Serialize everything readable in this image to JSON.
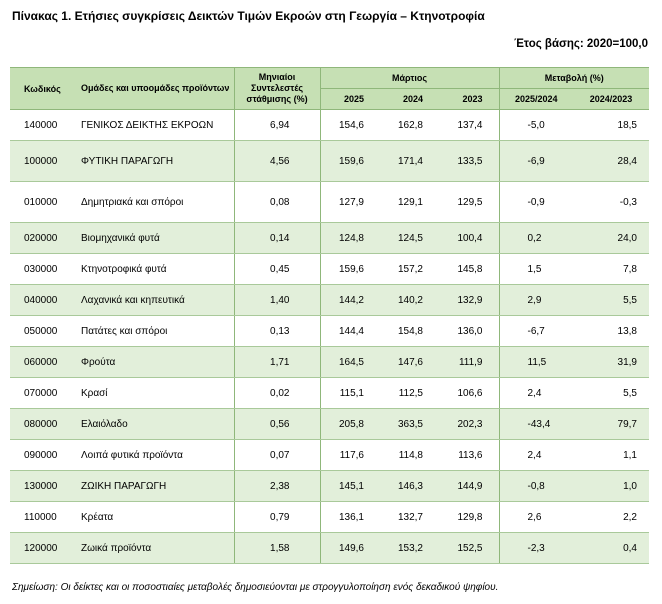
{
  "title": "Πίνακας 1. Ετήσιες συγκρίσεις Δεικτών Τιμών Εκροών στη Γεωργία – Κτηνοτροφία",
  "base_year": "Έτος βάσης: 2020=100,0",
  "header": {
    "code": "Κωδικός",
    "groups": "Ομάδες και υποομάδες προϊόντων",
    "weights": "Μηνιαίοι Συντελεστές στάθμισης (%)",
    "month": "Μάρτιος",
    "years": [
      "2025",
      "2024",
      "2023"
    ],
    "change": "Μεταβολή (%)",
    "change_periods": [
      "2025/2024",
      "2024/2023"
    ]
  },
  "rows": [
    {
      "code": "140000",
      "name": "ΓΕΝΙΚΟΣ ΔΕΙΚΤΗΣ ΕΚΡΟΩΝ",
      "weight": "6,94",
      "y2025": "154,6",
      "y2024": "162,8",
      "y2023": "137,4",
      "ch1": "-5,0",
      "ch2": "18,5"
    },
    {
      "code": "100000",
      "name": "ΦΥΤΙΚΗ ΠΑΡΑΓΩΓΗ",
      "weight": "4,56",
      "y2025": "159,6",
      "y2024": "171,4",
      "y2023": "133,5",
      "ch1": "-6,9",
      "ch2": "28,4"
    },
    {
      "code": "010000",
      "name": "Δημητριακά και σπόροι",
      "weight": "0,08",
      "y2025": "127,9",
      "y2024": "129,1",
      "y2023": "129,5",
      "ch1": "-0,9",
      "ch2": "-0,3"
    },
    {
      "code": "020000",
      "name": "Βιομηχανικά φυτά",
      "weight": "0,14",
      "y2025": "124,8",
      "y2024": "124,5",
      "y2023": "100,4",
      "ch1": "0,2",
      "ch2": "24,0"
    },
    {
      "code": "030000",
      "name": "Κτηνοτροφικά φυτά",
      "weight": "0,45",
      "y2025": "159,6",
      "y2024": "157,2",
      "y2023": "145,8",
      "ch1": "1,5",
      "ch2": "7,8"
    },
    {
      "code": "040000",
      "name": "Λαχανικά και κηπευτικά",
      "weight": "1,40",
      "y2025": "144,2",
      "y2024": "140,2",
      "y2023": "132,9",
      "ch1": "2,9",
      "ch2": "5,5"
    },
    {
      "code": "050000",
      "name": "Πατάτες και σπόροι",
      "weight": "0,13",
      "y2025": "144,4",
      "y2024": "154,8",
      "y2023": "136,0",
      "ch1": "-6,7",
      "ch2": "13,8"
    },
    {
      "code": "060000",
      "name": "Φρούτα",
      "weight": "1,71",
      "y2025": "164,5",
      "y2024": "147,6",
      "y2023": "111,9",
      "ch1": "11,5",
      "ch2": "31,9"
    },
    {
      "code": "070000",
      "name": "Κρασί",
      "weight": "0,02",
      "y2025": "115,1",
      "y2024": "112,5",
      "y2023": "106,6",
      "ch1": "2,4",
      "ch2": "5,5"
    },
    {
      "code": "080000",
      "name": "Ελαιόλαδο",
      "weight": "0,56",
      "y2025": "205,8",
      "y2024": "363,5",
      "y2023": "202,3",
      "ch1": "-43,4",
      "ch2": "79,7"
    },
    {
      "code": "090000",
      "name": "Λοιπά φυτικά προϊόντα",
      "weight": "0,07",
      "y2025": "117,6",
      "y2024": "114,8",
      "y2023": "113,6",
      "ch1": "2,4",
      "ch2": "1,1"
    },
    {
      "code": "130000",
      "name": "ΖΩΙΚΗ ΠΑΡΑΓΩΓΗ",
      "weight": "2,38",
      "y2025": "145,1",
      "y2024": "146,3",
      "y2023": "144,9",
      "ch1": "-0,8",
      "ch2": "1,0"
    },
    {
      "code": "110000",
      "name": "Κρέατα",
      "weight": "0,79",
      "y2025": "136,1",
      "y2024": "132,7",
      "y2023": "129,8",
      "ch1": "2,6",
      "ch2": "2,2"
    },
    {
      "code": "120000",
      "name": "Ζωικά προϊόντα",
      "weight": "1,58",
      "y2025": "149,6",
      "y2024": "153,2",
      "y2023": "152,5",
      "ch1": "-2,3",
      "ch2": "0,4"
    }
  ],
  "note": "Σημείωση: Οι δείκτες και οι ποσοστιαίες μεταβολές δημοσιεύονται με στρογγυλοποίηση ενός δεκαδικού ψηφίου.",
  "colors": {
    "header_bg": "#c6e0b4",
    "shade_bg": "#e2efda",
    "border": "#8fb77a"
  }
}
